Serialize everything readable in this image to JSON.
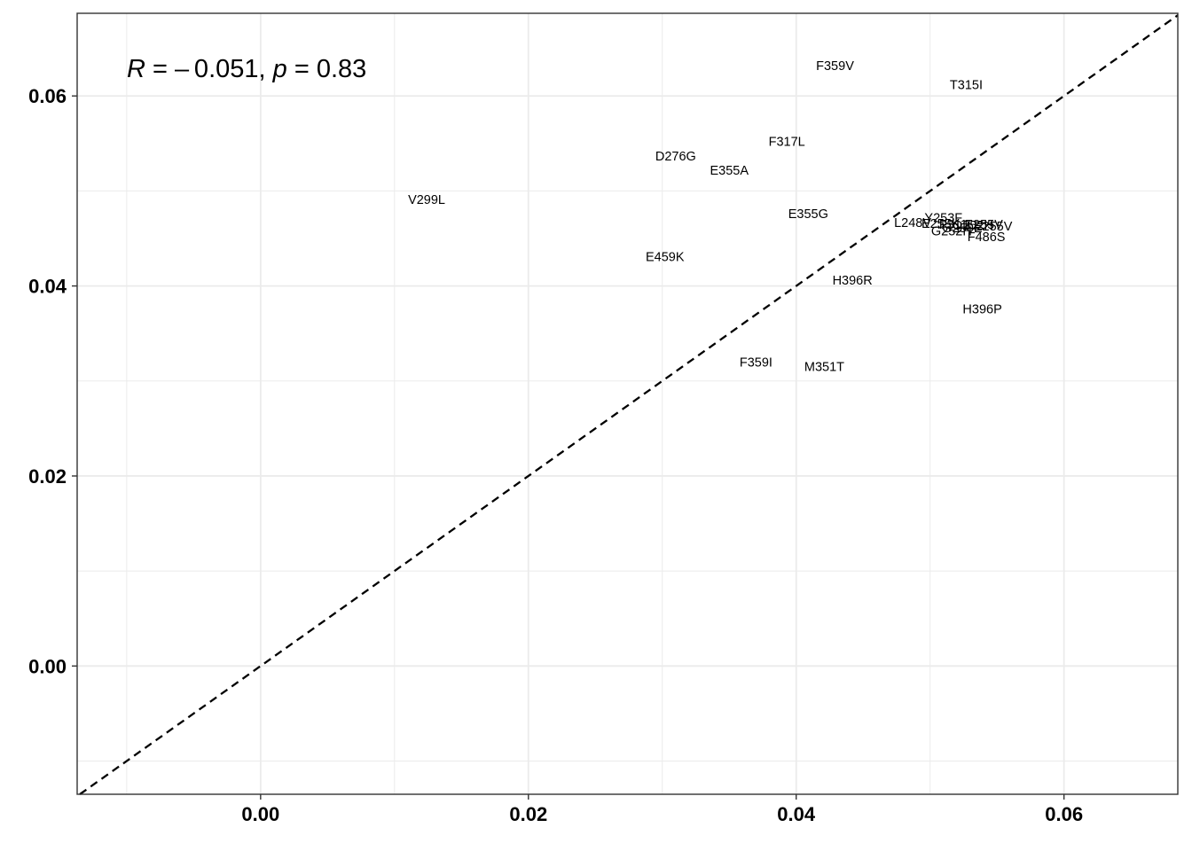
{
  "chart_data": {
    "type": "scatter",
    "title": "",
    "xlabel": "",
    "ylabel": "",
    "xlim": [
      -0.0137,
      0.0685
    ],
    "ylim": [
      -0.0135,
      0.0687
    ],
    "x_ticks": [
      "0.00",
      "0.02",
      "0.04",
      "0.06"
    ],
    "y_ticks": [
      "0.00",
      "0.02",
      "0.04",
      "0.06"
    ],
    "x_tick_values": [
      0.0,
      0.02,
      0.04,
      0.06
    ],
    "y_tick_values": [
      0.0,
      0.02,
      0.04,
      0.06
    ],
    "grid": true,
    "reference_line": {
      "style": "dashed",
      "slope": 1,
      "intercept": 0
    },
    "annotation": {
      "R_symbol": "R",
      "R_part": " = – 0.051, ",
      "p_symbol": "p",
      "p_part": " = 0.83"
    },
    "points": [
      {
        "label": "F359V",
        "x": 0.0429,
        "y": 0.0632
      },
      {
        "label": "T315I",
        "x": 0.0527,
        "y": 0.0612
      },
      {
        "label": "F317L",
        "x": 0.0393,
        "y": 0.0552
      },
      {
        "label": "D276G",
        "x": 0.031,
        "y": 0.0537
      },
      {
        "label": "E355A",
        "x": 0.035,
        "y": 0.0522
      },
      {
        "label": "V299L",
        "x": 0.0124,
        "y": 0.0491
      },
      {
        "label": "E355G",
        "x": 0.0409,
        "y": 0.0476
      },
      {
        "label": "Y253F",
        "x": 0.051,
        "y": 0.0472
      },
      {
        "label": "L248V",
        "x": 0.0487,
        "y": 0.0467
      },
      {
        "label": "E255K",
        "x": 0.0508,
        "y": 0.0466
      },
      {
        "label": "F311L",
        "x": 0.052,
        "y": 0.0465
      },
      {
        "label": "E255V",
        "x": 0.054,
        "y": 0.0465
      },
      {
        "label": "Q252H",
        "x": 0.0532,
        "y": 0.0464
      },
      {
        "label": "G250E",
        "x": 0.0524,
        "y": 0.0461
      },
      {
        "label": "G252H",
        "x": 0.0516,
        "y": 0.0458
      },
      {
        "label": "E255V",
        "x": 0.0547,
        "y": 0.0463
      },
      {
        "label": "F486S",
        "x": 0.0542,
        "y": 0.0452
      },
      {
        "label": "E459K",
        "x": 0.0302,
        "y": 0.0431
      },
      {
        "label": "H396R",
        "x": 0.0442,
        "y": 0.0406
      },
      {
        "label": "H396P",
        "x": 0.0539,
        "y": 0.0376
      },
      {
        "label": "F359I",
        "x": 0.037,
        "y": 0.032
      },
      {
        "label": "M351T",
        "x": 0.0421,
        "y": 0.0315
      }
    ]
  }
}
